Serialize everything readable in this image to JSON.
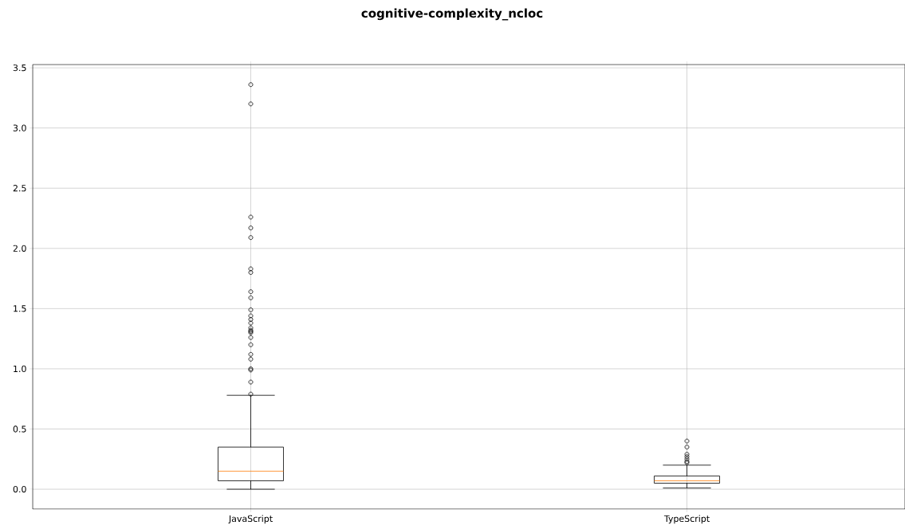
{
  "chart_data": {
    "type": "box",
    "title": "cognitive-complexity_ncloc",
    "categories": [
      "JavaScript",
      "TypeScript"
    ],
    "boxes": [
      {
        "low": 0.0,
        "q1": 0.07,
        "median": 0.15,
        "q3": 0.35,
        "high": 0.78,
        "outliers": [
          3.36,
          3.2,
          2.26,
          2.17,
          2.09,
          1.83,
          1.8,
          1.64,
          1.59,
          1.49,
          1.44,
          1.41,
          1.38,
          1.34,
          1.32,
          1.31,
          1.3,
          1.26,
          1.2,
          1.12,
          1.08,
          1.0,
          0.99,
          0.89,
          0.79
        ]
      },
      {
        "low": 0.01,
        "q1": 0.05,
        "median": 0.07,
        "q3": 0.11,
        "high": 0.2,
        "outliers": [
          0.4,
          0.35,
          0.29,
          0.27,
          0.25,
          0.23,
          0.22
        ]
      }
    ],
    "ylim": [
      -0.165,
      3.527
    ],
    "yticks": [
      {
        "value": 0,
        "label": "0.0"
      },
      {
        "value": 0.5,
        "label": "0.5"
      },
      {
        "value": 1,
        "label": "1.0"
      },
      {
        "value": 1.5,
        "label": "1.5"
      },
      {
        "value": 2,
        "label": "2.0"
      },
      {
        "value": 2.5,
        "label": "2.5"
      },
      {
        "value": 3,
        "label": "3.0"
      },
      {
        "value": 3.5,
        "label": "3.5"
      }
    ],
    "grid": true
  }
}
